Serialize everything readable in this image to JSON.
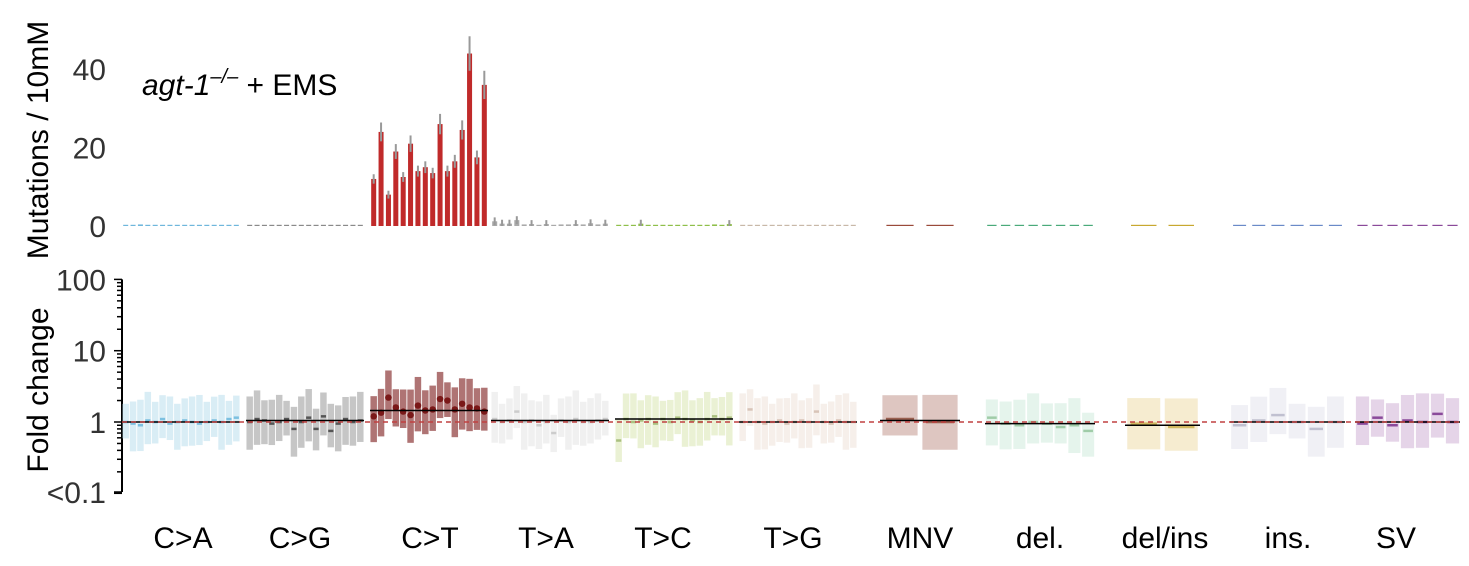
{
  "chart_data": [
    {
      "type": "bar",
      "panel": "top",
      "ylabel": "Mutations / 10mM",
      "ylim": [
        0,
        50
      ],
      "yticks": [
        0,
        20,
        40
      ],
      "annotation": {
        "gene": "agt-1",
        "superscript": "–/–",
        "suffix": " + EMS"
      },
      "groups": [
        {
          "name": "C>A",
          "color": "#6fb7dc",
          "values": [
            0.3,
            0.2,
            0.4,
            0.2,
            0.1,
            0.2,
            0.1,
            0.1,
            0.2,
            0.3,
            0.2,
            0.2,
            0.1,
            0.2,
            0.2,
            0.1
          ]
        },
        {
          "name": "C>G",
          "color": "#8a8a8a",
          "values": [
            0.1,
            0.1,
            0.2,
            0.1,
            0.1,
            0.1,
            0.1,
            0.1,
            0.1,
            0.2,
            0.1,
            0.1,
            0.1,
            0.1,
            0.1,
            0.1
          ]
        },
        {
          "name": "C>T",
          "color": "#c02a2a",
          "values": [
            12,
            24,
            8,
            19,
            12.5,
            21,
            14,
            15,
            13.5,
            26,
            14,
            16.5,
            24.5,
            44,
            17.5,
            36
          ]
        },
        {
          "name": "T>A",
          "color": "#aaaaaa",
          "values": [
            1.2,
            0.6,
            0.6,
            1.5,
            0.4,
            0.5,
            0.3,
            0.5,
            0.3,
            0.4,
            0.4,
            0.5,
            0.4,
            0.7,
            0.4,
            0.6
          ]
        },
        {
          "name": "T>C",
          "color": "#8fbf4a",
          "values": [
            0.3,
            0.2,
            0.3,
            0.6,
            0.2,
            0.2,
            0.2,
            0.3,
            0.2,
            0.3,
            0.3,
            0.3,
            0.3,
            0.4,
            0.3,
            0.5
          ]
        },
        {
          "name": "T>G",
          "color": "#c8b8a8",
          "values": [
            0.2,
            0.2,
            0.2,
            0.3,
            0.1,
            0.2,
            0.1,
            0.2,
            0.1,
            0.2,
            0.1,
            0.2,
            0.2,
            0.3,
            0.2,
            0.2
          ]
        },
        {
          "name": "MNV",
          "color": "#9a4a3a",
          "values": [
            0.3,
            0.1
          ]
        },
        {
          "name": "del.",
          "color": "#4aaa7a",
          "values": [
            0.3,
            0.2,
            0.2,
            0.1,
            0.2,
            0.2,
            0.1,
            0.1
          ]
        },
        {
          "name": "del/ins",
          "color": "#c8a830",
          "values": [
            0.1,
            0.1
          ]
        },
        {
          "name": "ins.",
          "color": "#6a8ac8",
          "values": [
            0.2,
            0.1,
            0.1,
            0.1,
            0.1,
            0.1
          ]
        },
        {
          "name": "SV",
          "color": "#8a4a9a",
          "values": [
            0.2,
            0.2,
            0.1,
            0.2,
            0.1,
            0.1,
            0.1
          ]
        }
      ]
    },
    {
      "type": "box",
      "panel": "bottom",
      "ylabel": "Fold change",
      "yscale": "log",
      "ylim": [
        0.1,
        100
      ],
      "ytick_labels": [
        "100",
        "10",
        "1",
        "<0.1"
      ],
      "reference_line": 1,
      "groups": [
        {
          "name": "C>A",
          "color": "#bfe1ee",
          "median_color": "#7cc0e0",
          "overall": 1.0,
          "values": [
            1.0,
            0.95,
            0.9,
            1.05,
            1.0,
            1.1,
            0.95,
            1.0,
            1.05,
            1.0,
            0.95,
            1.0,
            1.05,
            1.0,
            1.1,
            1.15
          ]
        },
        {
          "name": "C>G",
          "color": "#a0a0a0",
          "median_color": "#555555",
          "overall": 1.05,
          "values": [
            1.0,
            1.1,
            1.05,
            0.95,
            1.0,
            1.1,
            0.8,
            1.0,
            1.15,
            0.8,
            1.2,
            0.75,
            0.95,
            1.1,
            1.0,
            1.05
          ]
        },
        {
          "name": "C>T",
          "color": "#7a1818",
          "median_color": "#7a1818",
          "overall": 1.45,
          "values": [
            1.2,
            1.35,
            2.2,
            1.6,
            1.4,
            1.25,
            1.7,
            1.45,
            1.5,
            2.1,
            2.0,
            1.5,
            1.8,
            1.6,
            1.55,
            1.4
          ]
        },
        {
          "name": "T>A",
          "color": "#e6e6e6",
          "median_color": "#cccccc",
          "overall": 1.05,
          "values": [
            1.1,
            1.0,
            1.05,
            1.4,
            1.0,
            1.05,
            0.9,
            1.0,
            0.7,
            1.05,
            1.0,
            1.1,
            1.0,
            1.0,
            1.05,
            1.1
          ]
        },
        {
          "name": "T>C",
          "color": "#dce8b8",
          "median_color": "#aac080",
          "overall": 1.1,
          "values": [
            0.55,
            1.1,
            1.0,
            1.05,
            1.1,
            0.95,
            1.1,
            1.0,
            1.15,
            1.1,
            1.05,
            1.0,
            1.1,
            1.2,
            1.1,
            1.15
          ]
        },
        {
          "name": "T>G",
          "color": "#f0e4dc",
          "median_color": "#d8c4b8",
          "overall": 1.0,
          "values": [
            1.0,
            1.5,
            1.0,
            0.95,
            1.0,
            1.05,
            0.95,
            1.0,
            1.05,
            1.0,
            1.4,
            1.0,
            0.95,
            1.05,
            1.0,
            1.0
          ]
        },
        {
          "name": "MNV",
          "color": "#c8a098",
          "median_color": "#9a6050",
          "overall": 1.05,
          "values": [
            1.1,
            1.0
          ]
        },
        {
          "name": "del.",
          "color": "#d4ece0",
          "median_color": "#a0cca8",
          "overall": 0.95,
          "values": [
            1.15,
            0.95,
            0.9,
            1.0,
            0.95,
            0.85,
            0.9,
            0.75
          ]
        },
        {
          "name": "del/ins",
          "color": "#f0e0b0",
          "median_color": "#d0b860",
          "overall": 0.9,
          "values": [
            0.95,
            0.85
          ]
        },
        {
          "name": "ins.",
          "color": "#e6e6ee",
          "median_color": "#c0c0d0",
          "overall": 1.0,
          "values": [
            0.9,
            1.05,
            1.25,
            1.0,
            0.8,
            1.0
          ]
        },
        {
          "name": "SV",
          "color": "#d4b8d8",
          "median_color": "#8a4a9a",
          "overall": 1.0,
          "values": [
            0.95,
            1.15,
            0.9,
            1.05,
            1.0,
            1.3,
            1.0
          ]
        }
      ]
    }
  ]
}
